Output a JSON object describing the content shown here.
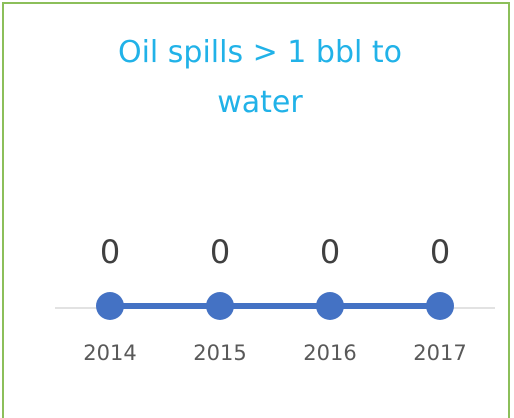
{
  "chart_data": {
    "type": "line",
    "title": "Oil spills > 1 bbl to water",
    "categories": [
      "2014",
      "2015",
      "2016",
      "2017"
    ],
    "values": [
      0,
      0,
      0,
      0
    ],
    "color": "#4472c4"
  }
}
